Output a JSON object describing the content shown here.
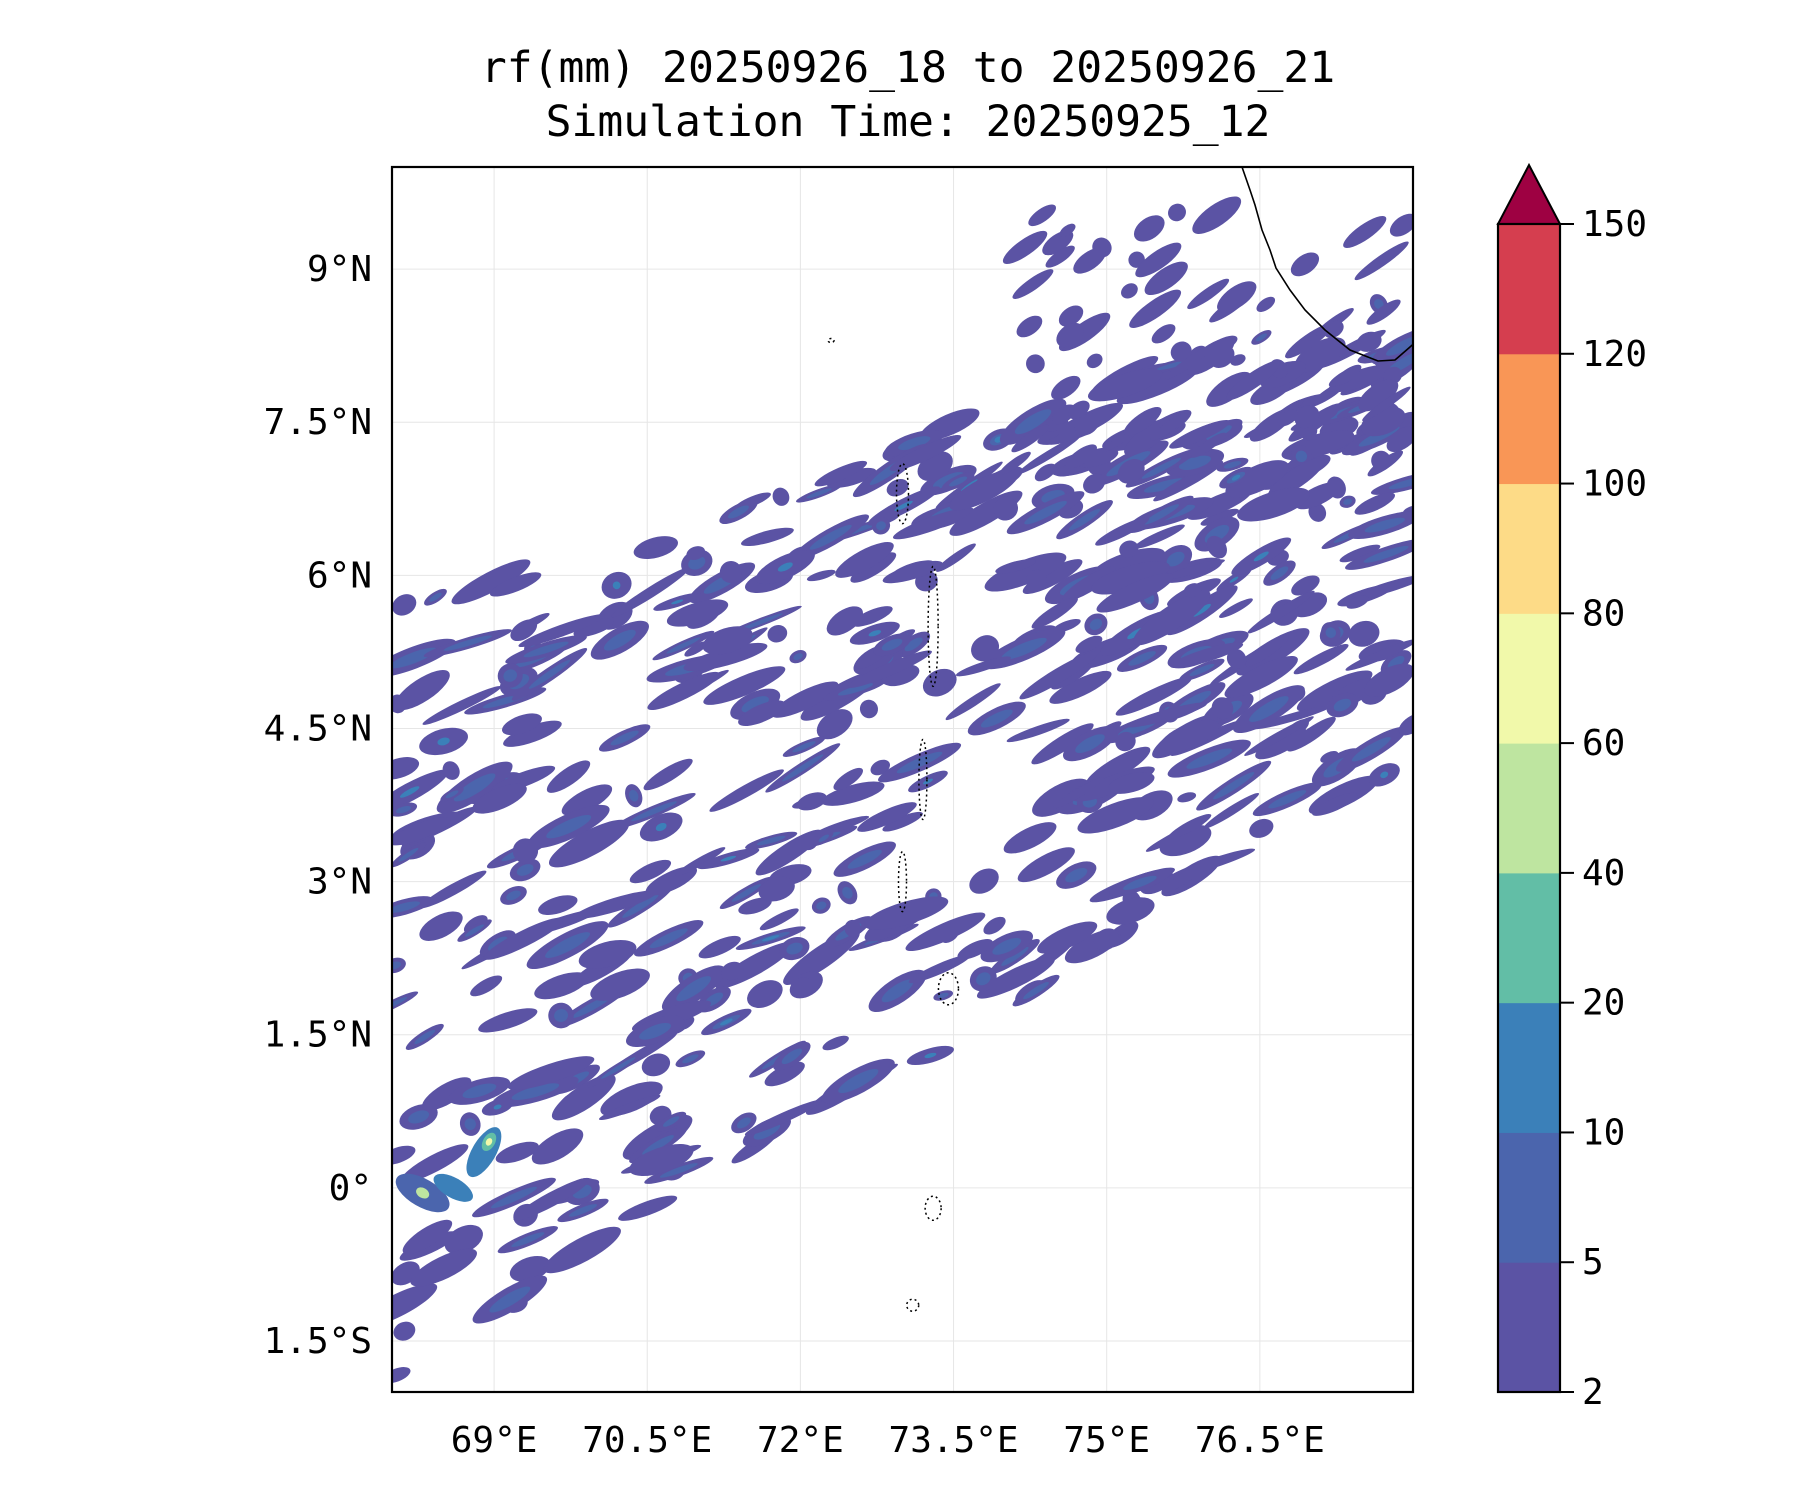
{
  "chart_data": {
    "type": "heatmap",
    "title": "rf(mm) 20250926_18 to 20250926_21",
    "subtitle": "Simulation Time: 20250925_12",
    "xlabel": "",
    "ylabel": "",
    "xlim": [
      68,
      78
    ],
    "ylim": [
      -2,
      10
    ],
    "x_ticks": [
      69,
      70.5,
      72,
      73.5,
      75,
      76.5
    ],
    "x_tick_labels": [
      "69°E",
      "70.5°E",
      "72°E",
      "73.5°E",
      "75°E",
      "76.5°E"
    ],
    "y_ticks": [
      -1.5,
      0,
      1.5,
      3,
      4.5,
      6,
      7.5,
      9
    ],
    "y_tick_labels": [
      "1.5°S",
      "0°",
      "1.5°N",
      "3°N",
      "4.5°N",
      "6°N",
      "7.5°N",
      "9°N"
    ],
    "grid": true,
    "colorbar": {
      "levels": [
        2,
        5,
        10,
        20,
        40,
        60,
        80,
        100,
        120,
        150
      ],
      "tick_labels": [
        "2",
        "5",
        "10",
        "20",
        "40",
        "60",
        "80",
        "100",
        "120",
        "150"
      ],
      "colors": [
        "#5b53a4",
        "#4b65ad",
        "#3b80b9",
        "#62bea6",
        "#bee5a0",
        "#f1f9aa",
        "#fddb87",
        "#f99656",
        "#d53e4f"
      ],
      "extend_color": "#9e0142",
      "extend": "max",
      "placement": "right"
    },
    "rain_band": {
      "description_units": "degrees",
      "max_value_region": [
        68.9,
        0.4
      ]
    }
  }
}
